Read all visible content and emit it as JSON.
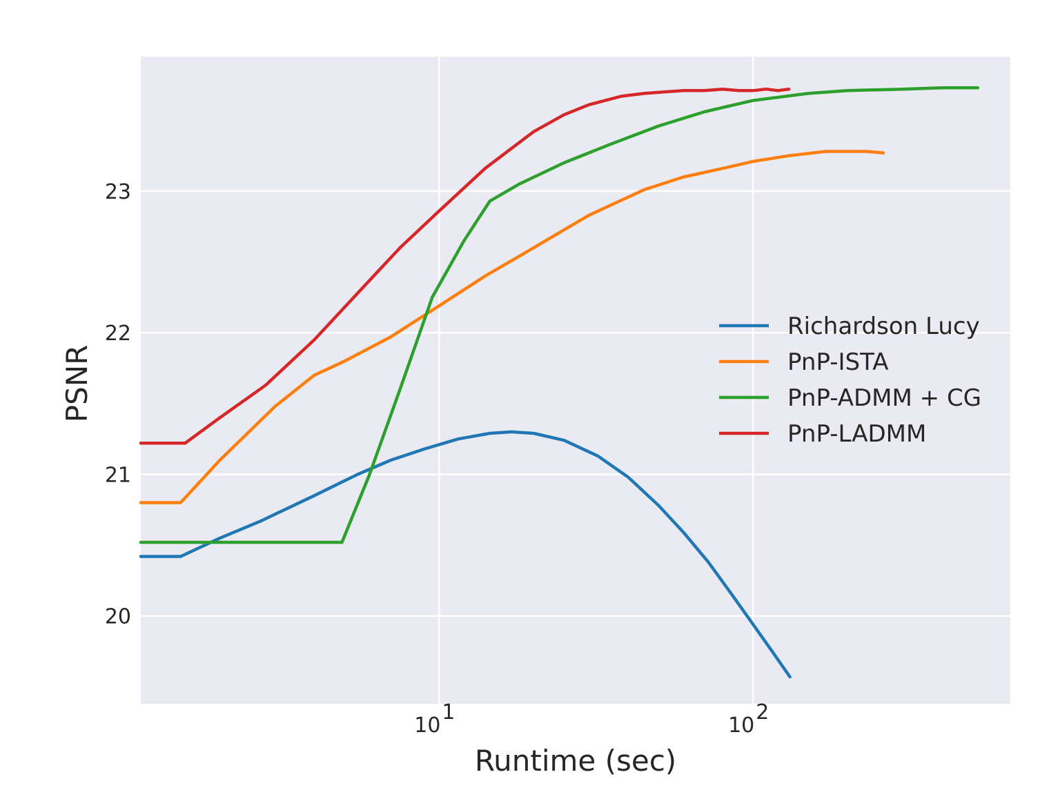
{
  "chart_data": {
    "type": "line",
    "title": "",
    "xlabel": "Runtime (sec)",
    "ylabel": "PSNR",
    "xscale": "log",
    "xlim": [
      1.12,
      660
    ],
    "ylim": [
      19.38,
      23.95
    ],
    "grid": true,
    "legend_position": "center-right",
    "x_ticks": [
      {
        "value": 10,
        "base": "10",
        "exp": "1"
      },
      {
        "value": 100,
        "base": "10",
        "exp": "2"
      }
    ],
    "y_ticks": [
      {
        "value": 20,
        "label": "20"
      },
      {
        "value": 21,
        "label": "21"
      },
      {
        "value": 22,
        "label": "22"
      },
      {
        "value": 23,
        "label": "23"
      }
    ],
    "series": [
      {
        "name": "Richardson Lucy",
        "color": "#1f77b4",
        "x": [
          1.12,
          1.5,
          2.0,
          2.7,
          4.0,
          5.5,
          7.0,
          9.0,
          11.5,
          14.5,
          17.0,
          20.0,
          25.0,
          32.0,
          40.0,
          50.0,
          60.0,
          72.0,
          85.0,
          100.0,
          115.0,
          131.0
        ],
        "y": [
          20.42,
          20.42,
          20.55,
          20.67,
          20.85,
          21.0,
          21.1,
          21.18,
          21.25,
          21.29,
          21.3,
          21.29,
          21.24,
          21.13,
          20.98,
          20.78,
          20.59,
          20.38,
          20.16,
          19.94,
          19.75,
          19.57
        ]
      },
      {
        "name": "PnP-ISTA",
        "color": "#ff7f0e",
        "x": [
          1.12,
          1.5,
          2.0,
          3.0,
          4.0,
          5.0,
          7.0,
          10.0,
          14.0,
          20.0,
          30.0,
          45.0,
          60.0,
          80.0,
          100.0,
          130.0,
          170.0,
          200.0,
          230.0,
          260.0
        ],
        "y": [
          20.8,
          20.8,
          21.1,
          21.48,
          21.7,
          21.8,
          21.97,
          22.19,
          22.4,
          22.6,
          22.83,
          23.01,
          23.1,
          23.16,
          23.21,
          23.25,
          23.28,
          23.28,
          23.28,
          23.27
        ]
      },
      {
        "name": "PnP-ADMM + CG",
        "color": "#2ca02c",
        "x": [
          1.12,
          2.0,
          3.0,
          4.0,
          4.9,
          6.0,
          7.5,
          9.5,
          12.0,
          14.5,
          18.0,
          25.0,
          35.0,
          50.0,
          70.0,
          100.0,
          150.0,
          200.0,
          300.0,
          400.0,
          520.0
        ],
        "y": [
          20.52,
          20.52,
          20.52,
          20.52,
          20.52,
          21.0,
          21.6,
          22.25,
          22.65,
          22.93,
          23.05,
          23.2,
          23.33,
          23.46,
          23.56,
          23.64,
          23.69,
          23.71,
          23.72,
          23.73,
          23.73
        ]
      },
      {
        "name": "PnP-LADMM",
        "color": "#d62728",
        "x": [
          1.12,
          1.55,
          2.0,
          2.8,
          4.0,
          5.5,
          7.5,
          10.0,
          14.0,
          20.0,
          25.0,
          30.0,
          38.0,
          45.0,
          52.0,
          60.0,
          70.0,
          80.0,
          90.0,
          100.0,
          110.0,
          120.0,
          130.0
        ],
        "y": [
          21.22,
          21.22,
          21.4,
          21.63,
          21.95,
          22.28,
          22.6,
          22.86,
          23.16,
          23.42,
          23.54,
          23.61,
          23.67,
          23.69,
          23.7,
          23.71,
          23.71,
          23.72,
          23.71,
          23.71,
          23.72,
          23.71,
          23.72
        ]
      }
    ]
  }
}
